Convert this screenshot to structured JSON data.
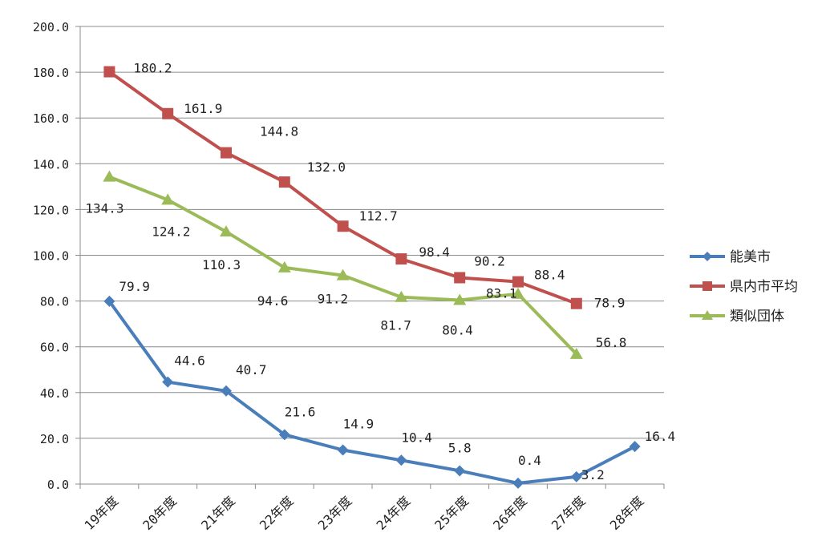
{
  "chart_data": {
    "type": "line",
    "categories": [
      "19年度",
      "20年度",
      "21年度",
      "22年度",
      "23年度",
      "24年度",
      "25年度",
      "26年度",
      "27年度",
      "28年度"
    ],
    "ylim": [
      0,
      200
    ],
    "yticks": [
      "0.0",
      "20.0",
      "40.0",
      "60.0",
      "80.0",
      "100.0",
      "120.0",
      "140.0",
      "160.0",
      "180.0",
      "200.0"
    ],
    "grid": true,
    "legend_position": "right",
    "series": [
      {
        "name": "能美市",
        "color": "#4a7ebb",
        "marker": "diamond",
        "values": [
          79.9,
          44.6,
          40.7,
          21.6,
          14.9,
          10.4,
          5.8,
          0.4,
          3.2,
          16.4
        ],
        "labels": [
          "79.9",
          "44.6",
          "40.7",
          "21.6",
          "14.9",
          "10.4",
          "5.8",
          "0.4",
          "3.2",
          "16.4"
        ]
      },
      {
        "name": "県内市平均",
        "color": "#c0504d",
        "marker": "square",
        "values": [
          180.2,
          161.9,
          144.8,
          132.0,
          112.7,
          98.4,
          90.2,
          88.4,
          78.9,
          null
        ],
        "labels": [
          "180.2",
          "161.9",
          "144.8",
          "132.0",
          "112.7",
          "98.4",
          "90.2",
          "88.4",
          "78.9",
          null
        ]
      },
      {
        "name": "類似団体",
        "color": "#9bbb59",
        "marker": "triangle",
        "values": [
          134.3,
          124.2,
          110.3,
          94.6,
          91.2,
          81.7,
          80.4,
          83.1,
          56.8,
          null
        ],
        "labels": [
          "134.3",
          "124.2",
          "110.3",
          "94.6",
          "91.2",
          "81.7",
          "80.4",
          "83.1",
          "56.8",
          null
        ]
      }
    ]
  }
}
